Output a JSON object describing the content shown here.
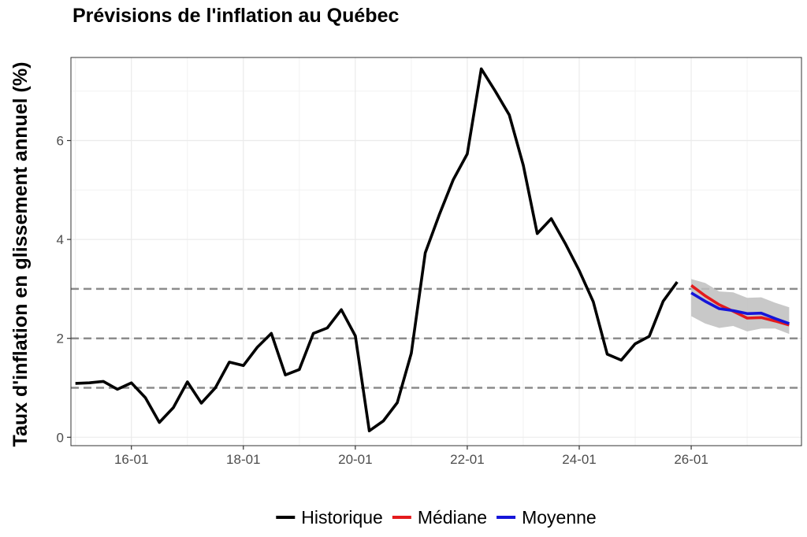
{
  "chart_data": {
    "type": "line",
    "title": "Prévisions de l'inflation au Québec",
    "ylabel": "Taux d'inflation en glissement annuel (%)",
    "xlabel": "",
    "x_tick_labels": [
      "16-01",
      "18-01",
      "20-01",
      "22-01",
      "24-01",
      "26-01"
    ],
    "x_ticks": [
      2016.0,
      2018.0,
      2020.0,
      2022.0,
      2024.0,
      2026.0
    ],
    "y_ticks": [
      0,
      2,
      4,
      6
    ],
    "xlim": [
      2014.92,
      2027.97
    ],
    "ylim": [
      -0.17,
      7.68
    ],
    "grid": true,
    "legend_position": "bottom",
    "reference_lines": [
      1,
      2,
      3
    ],
    "colors": {
      "historique": "#000000",
      "mediane": "#e41a1c",
      "moyenne": "#1515d9",
      "band": "#bebebe",
      "reference": "#8c8c8c"
    },
    "series": [
      {
        "name": "Historique",
        "x": [
          2015.0,
          2015.25,
          2015.5,
          2015.75,
          2016.0,
          2016.25,
          2016.5,
          2016.75,
          2017.0,
          2017.25,
          2017.5,
          2017.75,
          2018.0,
          2018.25,
          2018.5,
          2018.75,
          2019.0,
          2019.25,
          2019.5,
          2019.75,
          2020.0,
          2020.25,
          2020.5,
          2020.75,
          2021.0,
          2021.25,
          2021.5,
          2021.75,
          2022.0,
          2022.25,
          2022.5,
          2022.75,
          2023.0,
          2023.25,
          2023.5,
          2023.75,
          2024.0,
          2024.25,
          2024.5,
          2024.75,
          2025.0,
          2025.25,
          2025.5,
          2025.75
        ],
        "values": [
          1.09,
          1.1,
          1.13,
          0.97,
          1.1,
          0.8,
          0.3,
          0.6,
          1.12,
          0.69,
          1.0,
          1.52,
          1.45,
          1.82,
          2.1,
          1.26,
          1.37,
          2.1,
          2.21,
          2.58,
          2.05,
          0.13,
          0.33,
          0.7,
          1.7,
          3.73,
          4.5,
          5.21,
          5.73,
          7.45,
          7.0,
          6.52,
          5.5,
          4.12,
          4.42,
          3.92,
          3.37,
          2.74,
          1.68,
          1.56,
          1.89,
          2.04,
          2.75,
          3.14
        ]
      },
      {
        "name": "Médiane",
        "x": [
          2026.0,
          2026.25,
          2026.5,
          2026.75,
          2027.0,
          2027.25,
          2027.5,
          2027.75
        ],
        "values": [
          3.07,
          2.86,
          2.68,
          2.55,
          2.41,
          2.42,
          2.35,
          2.27
        ]
      },
      {
        "name": "Moyenne",
        "x": [
          2026.0,
          2026.25,
          2026.5,
          2026.75,
          2027.0,
          2027.25,
          2027.5,
          2027.75
        ],
        "values": [
          2.92,
          2.75,
          2.6,
          2.56,
          2.5,
          2.51,
          2.4,
          2.3
        ]
      }
    ],
    "uncertainty_band": {
      "x": [
        2026.0,
        2026.25,
        2026.5,
        2026.75,
        2027.0,
        2027.25,
        2027.5,
        2027.75
      ],
      "lower": [
        2.45,
        2.3,
        2.21,
        2.25,
        2.14,
        2.2,
        2.2,
        2.09
      ],
      "upper": [
        3.2,
        3.12,
        2.95,
        2.93,
        2.82,
        2.83,
        2.72,
        2.63
      ]
    }
  },
  "legend": [
    {
      "label": "Historique",
      "color": "#000000"
    },
    {
      "label": "Médiane",
      "color": "#e41a1c"
    },
    {
      "label": "Moyenne",
      "color": "#1515d9"
    }
  ]
}
